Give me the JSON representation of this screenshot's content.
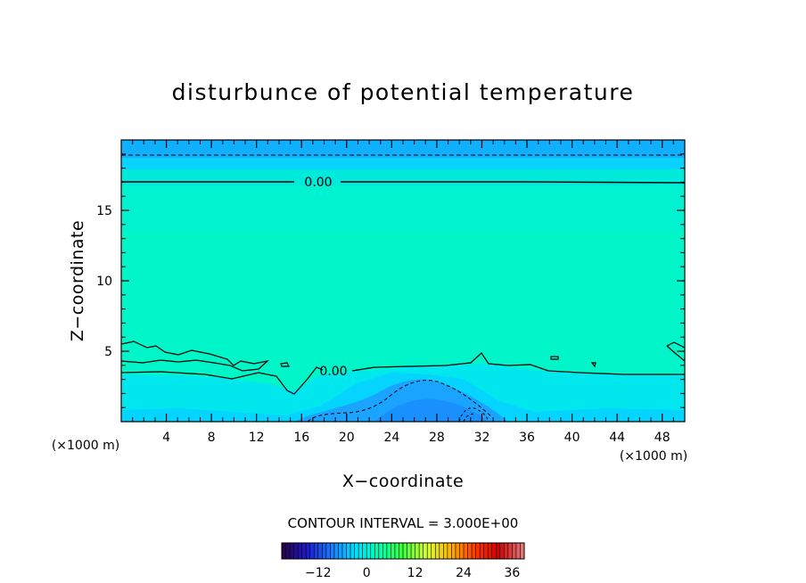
{
  "chart_data": {
    "type": "heatmap",
    "title": "disturbunce of potential temperature",
    "xlabel": "X−coordinate",
    "ylabel": "Z−coordinate",
    "x_unit": "(×1000 m)",
    "y_unit": "(×1000 m)",
    "xlim": [
      0,
      50
    ],
    "ylim": [
      0,
      20
    ],
    "x_ticks": [
      4,
      8,
      12,
      16,
      20,
      24,
      28,
      32,
      36,
      40,
      44,
      48
    ],
    "y_ticks": [
      5,
      10,
      15
    ],
    "contour_labels": [
      {
        "x": 17.5,
        "y": 16.9,
        "text": "0.00"
      },
      {
        "x": 18.5,
        "y": 3.6,
        "text": "0.00"
      }
    ],
    "contour_interval_text": "CONTOUR INTERVAL =  3.000E+00",
    "colorbar": {
      "ticks": [
        "−12",
        "0",
        "12",
        "24",
        "36"
      ],
      "tick_values": [
        -12,
        0,
        12,
        24,
        36
      ],
      "range": [
        -21,
        39
      ],
      "colors": [
        "#2a0050",
        "#1b1bd0",
        "#1a7cff",
        "#00e0ff",
        "#00ffb0",
        "#3cff3c",
        "#d8ff30",
        "#ffb400",
        "#ff3a00",
        "#d00000",
        "#e07878"
      ]
    },
    "fill_colors": {
      "top_band": "#11b0ff",
      "upper_band": "#0ad2ff",
      "middle": "#00f5c8",
      "low_band": "#00e8ee",
      "cold_dome": "#1aa4ff"
    },
    "grid": false
  }
}
